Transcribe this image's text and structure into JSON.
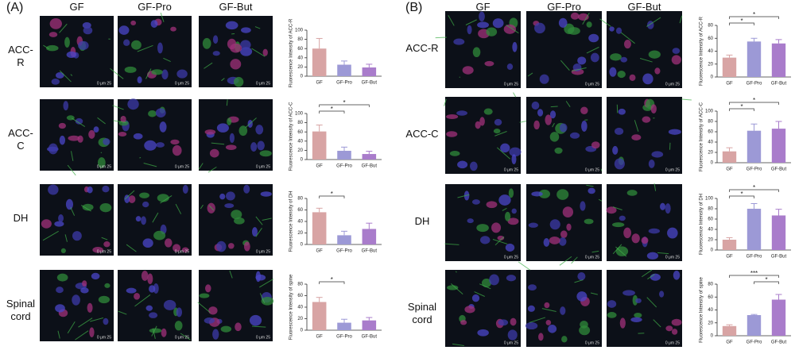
{
  "panels": [
    {
      "label": "(A)",
      "columns": [
        "GF",
        "GF-Pro",
        "GF-But"
      ],
      "rows": [
        "ACC-R",
        "ACC-C",
        "DH",
        "Spinal cord"
      ]
    },
    {
      "label": "(B)",
      "columns": [
        "GF",
        "GF-Pro",
        "GF-But"
      ],
      "rows": [
        "ACC-R",
        "ACC-C",
        "DH",
        "Spinal cord"
      ]
    }
  ],
  "scale_label": "0 μm 25",
  "chart_data": [
    {
      "type": "bar",
      "y_label": "Fluorescence Intensity of ACC-R",
      "categories": [
        "GF",
        "GF-Pro",
        "GF-But"
      ],
      "values": [
        60,
        25,
        19
      ],
      "errors": [
        22,
        8,
        7
      ],
      "colors": [
        "#d8a4a4",
        "#9c99d6",
        "#a97ccb"
      ],
      "ylim": [
        0,
        100
      ],
      "yticks": [
        0,
        20,
        40,
        60,
        80,
        100
      ],
      "comparisons": []
    },
    {
      "type": "bar",
      "y_label": "Fluorescence Intensity of ACC-C",
      "categories": [
        "GF",
        "GF-Pro",
        "GF-But"
      ],
      "values": [
        61,
        19,
        12
      ],
      "errors": [
        14,
        8,
        6
      ],
      "colors": [
        "#d8a4a4",
        "#9c99d6",
        "#a97ccb"
      ],
      "ylim": [
        0,
        100
      ],
      "yticks": [
        0,
        20,
        40,
        60,
        80,
        100
      ],
      "comparisons": [
        {
          "pair": [
            0,
            2
          ],
          "label": "*"
        },
        {
          "pair": [
            0,
            1
          ],
          "label": "*"
        }
      ]
    },
    {
      "type": "bar",
      "y_label": "Fluorescence Intensity of DH",
      "categories": [
        "GF",
        "GF-Pro",
        "GF-But"
      ],
      "values": [
        56,
        16,
        27
      ],
      "errors": [
        7,
        7,
        10
      ],
      "colors": [
        "#d8a4a4",
        "#9c99d6",
        "#a97ccb"
      ],
      "ylim": [
        0,
        80
      ],
      "yticks": [
        0,
        20,
        40,
        60,
        80
      ],
      "comparisons": [
        {
          "pair": [
            0,
            1
          ],
          "label": "*"
        }
      ]
    },
    {
      "type": "bar",
      "y_label": "Fluorescence Intensity of spine",
      "categories": [
        "GF",
        "GF-Pro",
        "GF-But"
      ],
      "values": [
        49,
        13,
        17
      ],
      "errors": [
        8,
        6,
        5
      ],
      "colors": [
        "#d8a4a4",
        "#9c99d6",
        "#a97ccb"
      ],
      "ylim": [
        0,
        80
      ],
      "yticks": [
        0,
        20,
        40,
        60,
        80
      ],
      "comparisons": [
        {
          "pair": [
            0,
            1
          ],
          "label": "*"
        }
      ]
    },
    {
      "type": "bar",
      "y_label": "Fluorescence Intensity of ACC-R",
      "categories": [
        "GF",
        "GF-Pro",
        "GF-But"
      ],
      "values": [
        30,
        55,
        52
      ],
      "errors": [
        4,
        5,
        6
      ],
      "colors": [
        "#d8a4a4",
        "#9c99d6",
        "#a97ccb"
      ],
      "ylim": [
        0,
        80
      ],
      "yticks": [
        0,
        20,
        40,
        60,
        80
      ],
      "comparisons": [
        {
          "pair": [
            0,
            2
          ],
          "label": "*"
        },
        {
          "pair": [
            0,
            1
          ],
          "label": "*"
        }
      ]
    },
    {
      "type": "bar",
      "y_label": "Fluorescence Intensity of ACC-C",
      "categories": [
        "GF",
        "GF-Pro",
        "GF-But"
      ],
      "values": [
        22,
        62,
        66
      ],
      "errors": [
        7,
        13,
        14
      ],
      "colors": [
        "#d8a4a4",
        "#9c99d6",
        "#a97ccb"
      ],
      "ylim": [
        0,
        100
      ],
      "yticks": [
        0,
        20,
        40,
        60,
        80,
        100
      ],
      "comparisons": [
        {
          "pair": [
            0,
            2
          ],
          "label": "*"
        },
        {
          "pair": [
            0,
            1
          ],
          "label": "*"
        }
      ]
    },
    {
      "type": "bar",
      "y_label": "Fluorescence Intensity of DH",
      "categories": [
        "GF",
        "GF-Pro",
        "GF-But"
      ],
      "values": [
        20,
        80,
        67
      ],
      "errors": [
        4,
        10,
        12
      ],
      "colors": [
        "#d8a4a4",
        "#9c99d6",
        "#a97ccb"
      ],
      "ylim": [
        0,
        100
      ],
      "yticks": [
        0,
        20,
        40,
        60,
        80,
        100
      ],
      "comparisons": [
        {
          "pair": [
            0,
            2
          ],
          "label": "*"
        },
        {
          "pair": [
            0,
            1
          ],
          "label": "*"
        }
      ]
    },
    {
      "type": "bar",
      "y_label": "Fluorescence Intensity of spine",
      "categories": [
        "GF",
        "GF-Pro",
        "GF-But"
      ],
      "values": [
        15,
        32,
        56
      ],
      "errors": [
        2,
        1,
        8
      ],
      "colors": [
        "#d8a4a4",
        "#9c99d6",
        "#a97ccb"
      ],
      "ylim": [
        0,
        80
      ],
      "yticks": [
        0,
        20,
        40,
        60,
        80
      ],
      "comparisons": [
        {
          "pair": [
            0,
            2
          ],
          "label": "***"
        },
        {
          "pair": [
            1,
            2
          ],
          "label": "*"
        }
      ]
    }
  ]
}
